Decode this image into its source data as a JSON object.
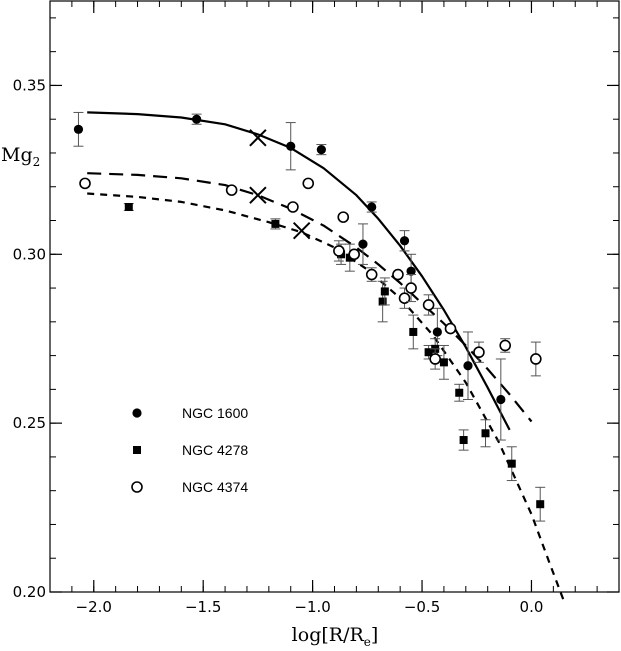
{
  "chart_data": {
    "type": "scatter",
    "xlabel": "log[R/R",
    "xlabel_sub": "e",
    "xlabel_close": "]",
    "ylabel": "Mg",
    "ylabel_sub": "2",
    "xlim": [
      -2.2,
      0.4
    ],
    "ylim": [
      0.2,
      0.375
    ],
    "x_ticks": [
      -2.0,
      -1.5,
      -1.0,
      -0.5,
      0.0
    ],
    "x_tick_labels": [
      "−2.0",
      "−1.5",
      "−1.0",
      "−0.5",
      "0.0"
    ],
    "y_ticks": [
      0.2,
      0.25,
      0.3,
      0.35
    ],
    "y_tick_labels": [
      "0.20",
      "0.25",
      "0.30",
      "0.35"
    ],
    "x_minor_step": 0.1,
    "y_minor_step": 0.01,
    "grid": false,
    "legend_position": "lower-left",
    "series": [
      {
        "name": "NGC 1600",
        "marker": "filled-circle",
        "points": [
          {
            "x": -2.07,
            "y": 0.337,
            "err": 0.005
          },
          {
            "x": -1.53,
            "y": 0.34,
            "err": 0.0015
          },
          {
            "x": -1.1,
            "y": 0.332,
            "err": 0.007
          },
          {
            "x": -0.96,
            "y": 0.331,
            "err": 0.0015
          },
          {
            "x": -0.77,
            "y": 0.303,
            "err": 0.006
          },
          {
            "x": -0.73,
            "y": 0.314,
            "err": 0.0015
          },
          {
            "x": -0.58,
            "y": 0.304,
            "err": 0.003
          },
          {
            "x": -0.55,
            "y": 0.295,
            "err": 0.005
          },
          {
            "x": -0.43,
            "y": 0.277,
            "err": 0.007
          },
          {
            "x": -0.29,
            "y": 0.267,
            "err": 0.01
          },
          {
            "x": -0.14,
            "y": 0.257,
            "err": 0.012
          }
        ]
      },
      {
        "name": "NGC 4278",
        "marker": "filled-square",
        "points": [
          {
            "x": -1.84,
            "y": 0.314,
            "err": 0.001
          },
          {
            "x": -1.17,
            "y": 0.309,
            "err": 0.0015
          },
          {
            "x": -0.87,
            "y": 0.3,
            "err": 0.003
          },
          {
            "x": -0.83,
            "y": 0.299,
            "err": 0.004
          },
          {
            "x": -0.68,
            "y": 0.286,
            "err": 0.006
          },
          {
            "x": -0.67,
            "y": 0.289,
            "err": 0.004
          },
          {
            "x": -0.54,
            "y": 0.277,
            "err": 0.005
          },
          {
            "x": -0.47,
            "y": 0.271,
            "err": 0.002
          },
          {
            "x": -0.44,
            "y": 0.272,
            "err": 0.003
          },
          {
            "x": -0.4,
            "y": 0.268,
            "err": 0.005
          },
          {
            "x": -0.33,
            "y": 0.259,
            "err": 0.0025
          },
          {
            "x": -0.31,
            "y": 0.245,
            "err": 0.003
          },
          {
            "x": -0.21,
            "y": 0.247,
            "err": 0.004
          },
          {
            "x": -0.09,
            "y": 0.238,
            "err": 0.005
          },
          {
            "x": 0.04,
            "y": 0.226,
            "err": 0.005
          }
        ]
      },
      {
        "name": "NGC 4374",
        "marker": "open-circle",
        "points": [
          {
            "x": -2.04,
            "y": 0.321,
            "err": 0.0
          },
          {
            "x": -1.37,
            "y": 0.319,
            "err": 0.0
          },
          {
            "x": -1.09,
            "y": 0.314,
            "err": 0.0
          },
          {
            "x": -1.02,
            "y": 0.321,
            "err": 0.0
          },
          {
            "x": -0.86,
            "y": 0.311,
            "err": 0.0
          },
          {
            "x": -0.88,
            "y": 0.301,
            "err": 0.003
          },
          {
            "x": -0.81,
            "y": 0.3,
            "err": 0.0
          },
          {
            "x": -0.73,
            "y": 0.294,
            "err": 0.002
          },
          {
            "x": -0.61,
            "y": 0.294,
            "err": 0.0
          },
          {
            "x": -0.58,
            "y": 0.287,
            "err": 0.003
          },
          {
            "x": -0.55,
            "y": 0.29,
            "err": 0.004
          },
          {
            "x": -0.47,
            "y": 0.285,
            "err": 0.003
          },
          {
            "x": -0.44,
            "y": 0.269,
            "err": 0.003
          },
          {
            "x": -0.37,
            "y": 0.278,
            "err": 0.0
          },
          {
            "x": -0.24,
            "y": 0.271,
            "err": 0.003
          },
          {
            "x": -0.12,
            "y": 0.273,
            "err": 0.002
          },
          {
            "x": 0.02,
            "y": 0.269,
            "err": 0.005
          }
        ]
      }
    ],
    "curves": [
      {
        "series": "NGC 1600",
        "style": "solid",
        "x": [
          -2.03,
          -1.8,
          -1.6,
          -1.4,
          -1.25,
          -1.1,
          -0.95,
          -0.8,
          -0.7,
          -0.6,
          -0.5,
          -0.4,
          -0.3,
          -0.2,
          -0.1
        ],
        "y": [
          0.342,
          0.3415,
          0.3405,
          0.3385,
          0.3355,
          0.3315,
          0.3255,
          0.3175,
          0.3105,
          0.3025,
          0.2935,
          0.2835,
          0.2725,
          0.2605,
          0.248
        ]
      },
      {
        "series": "NGC 4374",
        "style": "long-dash",
        "x": [
          -2.03,
          -1.8,
          -1.6,
          -1.4,
          -1.25,
          -1.1,
          -0.95,
          -0.8,
          -0.7,
          -0.6,
          -0.5,
          -0.4,
          -0.3,
          -0.2,
          -0.1,
          0.0
        ],
        "y": [
          0.324,
          0.3235,
          0.3225,
          0.3205,
          0.3175,
          0.3135,
          0.3085,
          0.302,
          0.297,
          0.2915,
          0.2855,
          0.2795,
          0.273,
          0.266,
          0.2585,
          0.2505
        ]
      },
      {
        "series": "NGC 4278",
        "style": "short-dash",
        "x": [
          -2.03,
          -1.8,
          -1.6,
          -1.4,
          -1.2,
          -1.05,
          -0.9,
          -0.75,
          -0.6,
          -0.45,
          -0.3,
          -0.15,
          0.0,
          0.08,
          0.15
        ],
        "y": [
          0.318,
          0.317,
          0.3155,
          0.313,
          0.3095,
          0.3065,
          0.302,
          0.2955,
          0.287,
          0.276,
          0.262,
          0.2445,
          0.223,
          0.209,
          0.197
        ]
      }
    ],
    "crosses": [
      {
        "x": -1.25,
        "y": 0.3345
      },
      {
        "x": -1.25,
        "y": 0.3175
      },
      {
        "x": -1.05,
        "y": 0.307
      }
    ],
    "legend": [
      {
        "marker": "filled-circle",
        "label": "NGC 1600"
      },
      {
        "marker": "filled-square",
        "label": "NGC 4278"
      },
      {
        "marker": "open-circle",
        "label": "NGC 4374"
      }
    ]
  }
}
